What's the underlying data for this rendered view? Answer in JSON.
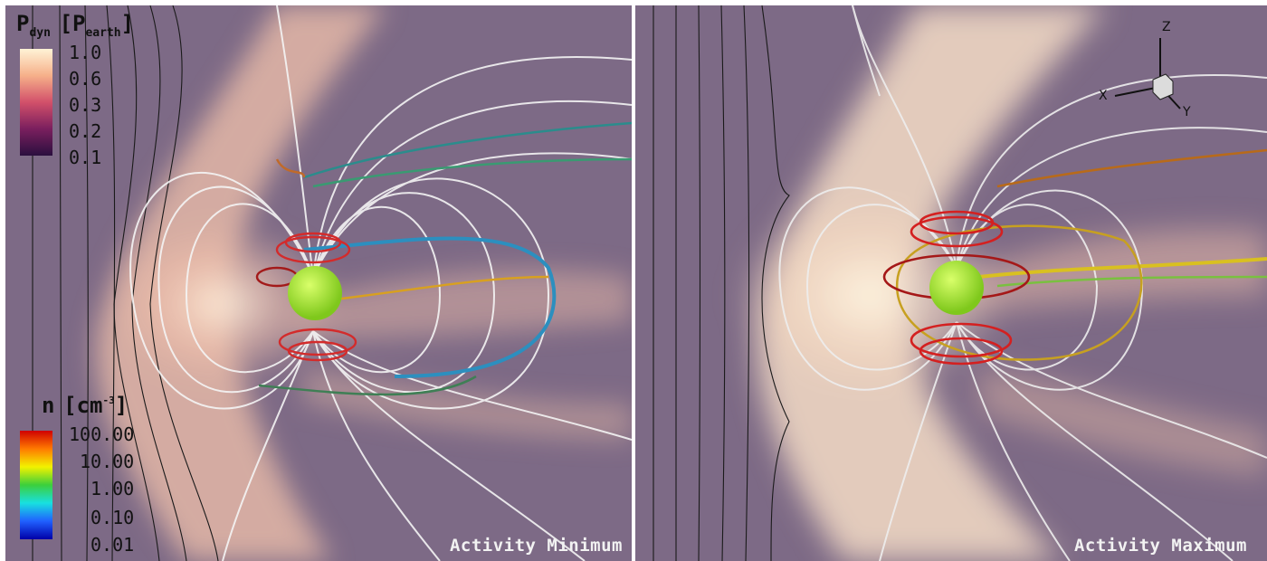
{
  "panels": {
    "left": {
      "caption": "Activity Minimum"
    },
    "right": {
      "caption": "Activity Maximum"
    }
  },
  "legend_pdyn": {
    "symbol": "P",
    "subscript": "dyn",
    "unit_symbol": "[P",
    "unit_subscript": "earth",
    "unit_close": "]",
    "ticks": [
      "1.0",
      "0.6",
      "0.3",
      "0.2",
      "0.1"
    ],
    "colors": [
      "#fff3d6",
      "#f6b08a",
      "#d2506a",
      "#7a1f5e",
      "#2b0f3f"
    ]
  },
  "legend_n": {
    "symbol": "n",
    "unit_open": "[cm",
    "unit_superscript": "-3",
    "unit_close": "]",
    "ticks": [
      "100.00",
      "10.00",
      "1.00",
      "0.10",
      "0.01"
    ],
    "colors": [
      "#d00000",
      "#ff7a00",
      "#f2f200",
      "#3ccf3c",
      "#18e0e0",
      "#2060ff",
      "#0000a8"
    ]
  },
  "axes": {
    "z": "Z",
    "x": "X",
    "y": "Y"
  },
  "colors": {
    "background": "#7d6a86",
    "sheath": "#f3c9b0",
    "planet": "#9be22e",
    "field_line": "#f0f0f0",
    "solar_wind_line": "#1a1a1a"
  }
}
